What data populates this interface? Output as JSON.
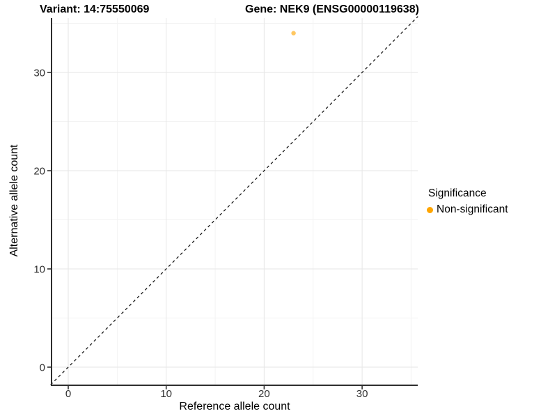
{
  "figure": {
    "title_left": "Variant: 14:75550069",
    "title_right": "Gene: NEK9 (ENSG00000119638)"
  },
  "chart_data": {
    "type": "scatter",
    "title": "Variant: 14:75550069   Gene: NEK9 (ENSG00000119638)",
    "xlabel": "Reference allele count",
    "ylabel": "Alternative allele count",
    "xlim": [
      -1.8,
      35.7
    ],
    "ylim": [
      -1.8,
      35.7
    ],
    "x_ticks": [
      0,
      10,
      20,
      30
    ],
    "y_ticks": [
      0,
      10,
      20,
      30
    ],
    "x_minor_ticks": [
      5,
      15,
      25,
      35
    ],
    "y_minor_ticks": [
      5,
      15,
      25,
      35
    ],
    "grid": "major+minor",
    "series": [
      {
        "name": "Non-significant",
        "color": "#FFA500",
        "points": [
          {
            "x": 23,
            "y": 34
          }
        ]
      }
    ],
    "reference_line": {
      "slope": 1,
      "intercept": 0,
      "style": "dashed",
      "color": "#1a1a1a"
    },
    "legend": {
      "title": "Significance",
      "position": "right",
      "entries": [
        {
          "label": "Non-significant",
          "color": "#FFA500"
        }
      ]
    }
  },
  "colors": {
    "point": "#FFA500",
    "grid_major": "#e6e6e6",
    "grid_minor": "#f3f3f3",
    "axis": "#2e2e2e",
    "background": "#ffffff"
  }
}
